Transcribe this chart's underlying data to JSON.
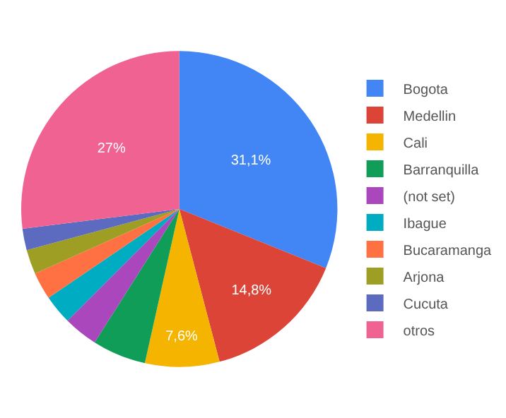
{
  "chart_data": {
    "type": "pie",
    "categories": [
      "Bogota",
      "Medellin",
      "Cali",
      "Barranquilla",
      "(not set)",
      "Ibague",
      "Bucaramanga",
      "Arjona",
      "Cucuta",
      "otros"
    ],
    "values": [
      31.1,
      14.8,
      7.6,
      5.5,
      3.5,
      3,
      2.8,
      2.5,
      2.2,
      27
    ],
    "colors": [
      "#4285f4",
      "#db4437",
      "#f4b400",
      "#0f9d58",
      "#ab47bc",
      "#00acc1",
      "#ff7043",
      "#9e9d24",
      "#5c6bc0",
      "#f06292"
    ],
    "value_labels": [
      "31,1%",
      "14,8%",
      "7,6%",
      null,
      null,
      null,
      null,
      null,
      null,
      "27%"
    ],
    "legend": "right"
  }
}
